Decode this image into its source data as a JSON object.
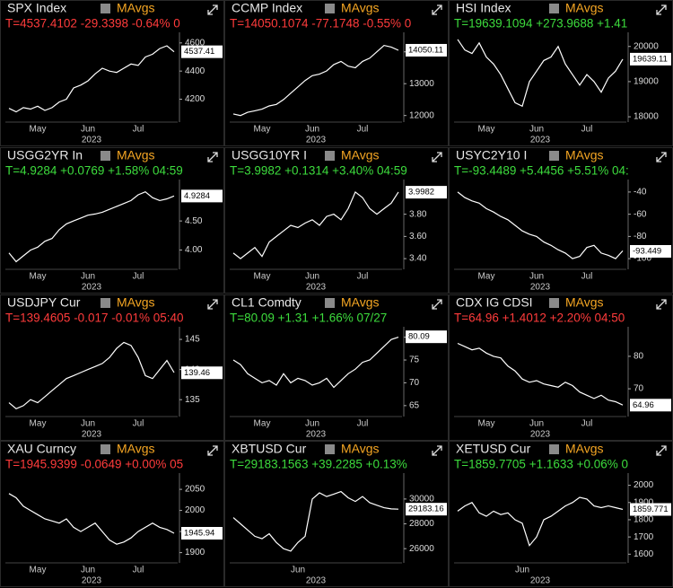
{
  "chart_data": [
    {
      "type": "line",
      "title": "SPX Index",
      "legend": "MAvgs",
      "legend_color": "#f5a623",
      "quote": "T=4537.4102 -29.3398 -0.64% 0",
      "quote_color": "#ff3b3b",
      "color": "#ffffff",
      "last_value": 4537.41,
      "categories": [
        null,
        null,
        null,
        null,
        "May",
        null,
        null,
        null,
        null,
        null,
        null,
        "Jun",
        null,
        null,
        null,
        null,
        null,
        null,
        "Jul",
        null,
        null,
        null,
        null,
        null
      ],
      "xlabel": "2023",
      "values": [
        4135,
        4110,
        4140,
        4130,
        4150,
        4120,
        4140,
        4180,
        4200,
        4280,
        4300,
        4330,
        4380,
        4420,
        4400,
        4390,
        4420,
        4450,
        4440,
        4500,
        4520,
        4560,
        4580,
        4537
      ],
      "ylim": [
        4050,
        4650
      ],
      "yticks": [
        4200,
        4400,
        4600
      ]
    },
    {
      "type": "line",
      "title": "CCMP Index",
      "legend": "MAvgs",
      "legend_color": "#f5a623",
      "quote": "T=14050.1074 -77.1748 -0.55% 0",
      "quote_color": "#ff3b3b",
      "color": "#ffffff",
      "last_value": 14050.11,
      "categories": [
        null,
        null,
        null,
        null,
        "May",
        null,
        null,
        null,
        null,
        null,
        null,
        "Jun",
        null,
        null,
        null,
        null,
        null,
        null,
        "Jul",
        null,
        null,
        null,
        null,
        null
      ],
      "xlabel": "2023",
      "values": [
        12050,
        12000,
        12100,
        12150,
        12200,
        12300,
        12350,
        12500,
        12700,
        12900,
        13100,
        13250,
        13300,
        13400,
        13600,
        13700,
        13550,
        13500,
        13700,
        13800,
        14000,
        14200,
        14150,
        14050
      ],
      "ylim": [
        11850,
        14500
      ],
      "yticks": [
        12000,
        13000,
        14000
      ]
    },
    {
      "type": "line",
      "title": "HSI Index",
      "legend": "MAvgs",
      "legend_color": "#f5a623",
      "quote": "T=19639.1094 +273.9688 +1.41",
      "quote_color": "#3ddc3d",
      "color": "#ffffff",
      "last_value": 19639.11,
      "categories": [
        null,
        null,
        null,
        null,
        "May",
        null,
        null,
        null,
        null,
        null,
        null,
        "Jun",
        null,
        null,
        null,
        null,
        null,
        null,
        "Jul",
        null,
        null,
        null,
        null,
        null
      ],
      "xlabel": "2023",
      "values": [
        20200,
        19900,
        19800,
        20100,
        19700,
        19500,
        19200,
        18800,
        18400,
        18300,
        19000,
        19300,
        19600,
        19700,
        20000,
        19500,
        19200,
        18900,
        19200,
        19000,
        18700,
        19100,
        19300,
        19639
      ],
      "ylim": [
        17900,
        20300
      ],
      "yticks": [
        18000,
        19000,
        20000
      ]
    },
    {
      "type": "line",
      "title": "USGG2YR In",
      "legend": "MAvgs",
      "legend_color": "#f5a623",
      "quote": "T=4.9284 +0.0769 +1.58% 04:59",
      "quote_color": "#3ddc3d",
      "color": "#ffffff",
      "last_value": 4.9284,
      "categories": [
        null,
        null,
        null,
        null,
        "May",
        null,
        null,
        null,
        null,
        null,
        null,
        "Jun",
        null,
        null,
        null,
        null,
        null,
        null,
        "Jul",
        null,
        null,
        null,
        null,
        null
      ],
      "xlabel": "2023",
      "values": [
        3.95,
        3.8,
        3.9,
        4.0,
        4.05,
        4.15,
        4.2,
        4.35,
        4.45,
        4.5,
        4.55,
        4.6,
        4.62,
        4.65,
        4.7,
        4.75,
        4.8,
        4.85,
        4.95,
        5.0,
        4.9,
        4.85,
        4.88,
        4.93
      ],
      "ylim": [
        3.7,
        5.15
      ],
      "yticks": [
        {
          "value": 4,
          "label": "4.00"
        },
        {
          "value": 4.5,
          "label": "4.50"
        }
      ]
    },
    {
      "type": "line",
      "title": "USGG10YR I",
      "legend": "MAvgs",
      "legend_color": "#f5a623",
      "quote": "T=3.9982 +0.1314 +3.40% 04:59",
      "quote_color": "#3ddc3d",
      "color": "#ffffff",
      "last_value": 3.9982,
      "categories": [
        null,
        null,
        null,
        null,
        "May",
        null,
        null,
        null,
        null,
        null,
        null,
        "Jun",
        null,
        null,
        null,
        null,
        null,
        null,
        "Jul",
        null,
        null,
        null,
        null,
        null
      ],
      "xlabel": "2023",
      "values": [
        3.45,
        3.4,
        3.45,
        3.5,
        3.42,
        3.55,
        3.6,
        3.65,
        3.7,
        3.68,
        3.72,
        3.75,
        3.7,
        3.78,
        3.8,
        3.75,
        3.85,
        4.0,
        3.95,
        3.85,
        3.8,
        3.85,
        3.9,
        4.0
      ],
      "ylim": [
        3.32,
        4.08
      ],
      "yticks": [
        {
          "value": 3.4,
          "label": "3.40"
        },
        {
          "value": 3.6,
          "label": "3.60"
        },
        {
          "value": 3.8,
          "label": "3.80"
        }
      ]
    },
    {
      "type": "line",
      "title": "USYC2Y10 I",
      "legend": "MAvgs",
      "legend_color": "#f5a623",
      "quote": "T=-93.4489 +5.4456 +5.51% 04:",
      "quote_color": "#3ddc3d",
      "color": "#ffffff",
      "last_value": -93.449,
      "categories": [
        null,
        null,
        null,
        null,
        "May",
        null,
        null,
        null,
        null,
        null,
        null,
        "Jun",
        null,
        null,
        null,
        null,
        null,
        null,
        "Jul",
        null,
        null,
        null,
        null,
        null
      ],
      "xlabel": "2023",
      "values": [
        -40,
        -45,
        -48,
        -50,
        -55,
        -58,
        -62,
        -65,
        -70,
        -75,
        -78,
        -80,
        -85,
        -88,
        -92,
        -95,
        -100,
        -98,
        -90,
        -88,
        -95,
        -97,
        -100,
        -93
      ],
      "ylim": [
        -108,
        -32
      ],
      "yticks": [
        -40,
        -60,
        -80,
        -100
      ]
    },
    {
      "type": "line",
      "title": "USDJPY Cur",
      "legend": "MAvgs",
      "legend_color": "#f5a623",
      "quote": "T=139.4605 -0.017 -0.01% 05:40",
      "quote_color": "#ff3b3b",
      "color": "#ffffff",
      "last_value": 139.46,
      "categories": [
        null,
        null,
        null,
        null,
        "May",
        null,
        null,
        null,
        null,
        null,
        null,
        "Jun",
        null,
        null,
        null,
        null,
        null,
        null,
        "Jul",
        null,
        null,
        null,
        null,
        null
      ],
      "xlabel": "2023",
      "values": [
        134.5,
        133.5,
        134,
        135,
        134.5,
        135.5,
        136.5,
        137.5,
        138.5,
        139,
        139.5,
        140,
        140.5,
        141,
        142,
        143.5,
        144.5,
        144,
        142,
        139,
        138.5,
        140,
        141.5,
        139.5
      ],
      "ylim": [
        132.5,
        146.5
      ],
      "yticks": [
        135,
        140,
        145
      ]
    },
    {
      "type": "line",
      "title": "CL1 Comdty",
      "legend": "MAvgs",
      "legend_color": "#f5a623",
      "quote": "T=80.09 +1.31 +1.66% 07/27",
      "quote_color": "#3ddc3d",
      "color": "#ffffff",
      "last_value": 80.09,
      "categories": [
        null,
        null,
        null,
        null,
        "May",
        null,
        null,
        null,
        null,
        null,
        null,
        "Jun",
        null,
        null,
        null,
        null,
        null,
        null,
        "Jul",
        null,
        null,
        null,
        null,
        null
      ],
      "xlabel": "2023",
      "values": [
        75,
        74,
        72,
        71,
        70,
        70.5,
        69.5,
        72,
        70,
        71,
        70.5,
        69.5,
        70,
        71,
        69,
        70.5,
        72,
        73,
        74.5,
        75,
        76.5,
        78,
        79.5,
        80
      ],
      "ylim": [
        63,
        81.5
      ],
      "yticks": [
        65,
        70,
        75,
        80
      ]
    },
    {
      "type": "line",
      "title": "CDX IG CDSI",
      "legend": "MAvgs",
      "legend_color": "#f5a623",
      "quote": "T=64.96 +1.4012 +2.20% 04:50",
      "quote_color": "#ff3b3b",
      "color": "#ffffff",
      "last_value": 64.96,
      "categories": [
        null,
        null,
        null,
        null,
        "May",
        null,
        null,
        null,
        null,
        null,
        null,
        "Jun",
        null,
        null,
        null,
        null,
        null,
        null,
        "Jul",
        null,
        null,
        null,
        null,
        null
      ],
      "xlabel": "2023",
      "values": [
        84,
        83,
        82,
        82.5,
        81,
        80,
        79.5,
        77,
        75.5,
        73,
        72,
        72.5,
        71.5,
        71,
        70.5,
        72,
        71,
        69,
        68,
        67,
        68,
        66.5,
        66,
        65
      ],
      "ylim": [
        62,
        88
      ],
      "yticks": [
        70,
        80
      ]
    },
    {
      "type": "line",
      "title": "XAU Curncy",
      "legend": "MAvgs",
      "legend_color": "#f5a623",
      "quote": "T=1945.9399 -0.0649 +0.00% 05",
      "quote_color": "#ff3b3b",
      "color": "#ffffff",
      "last_value": 1945.94,
      "categories": [
        null,
        null,
        null,
        null,
        "May",
        null,
        null,
        null,
        null,
        null,
        null,
        "Jun",
        null,
        null,
        null,
        null,
        null,
        null,
        "Jul",
        null,
        null,
        null,
        null,
        null
      ],
      "xlabel": "2023",
      "values": [
        2040,
        2030,
        2010,
        2000,
        1990,
        1980,
        1975,
        1970,
        1980,
        1960,
        1950,
        1960,
        1970,
        1950,
        1930,
        1920,
        1925,
        1935,
        1950,
        1960,
        1970,
        1960,
        1955,
        1946
      ],
      "ylim": [
        1880,
        2080
      ],
      "yticks": [
        1900,
        1950,
        2000,
        2050
      ]
    },
    {
      "type": "line",
      "title": "XBTUSD Cur",
      "legend": "MAvgs",
      "legend_color": "#f5a623",
      "quote": "T=29183.1563 +39.2285 +0.13%",
      "quote_color": "#3ddc3d",
      "color": "#ffffff",
      "last_value": 29183.16,
      "categories": [
        null,
        null,
        null,
        null,
        null,
        null,
        null,
        null,
        null,
        "Jun",
        null,
        null,
        null,
        null,
        null,
        null,
        null,
        null,
        null,
        null,
        null,
        null,
        null,
        null
      ],
      "xlabel": "2023",
      "values": [
        28500,
        28000,
        27500,
        27000,
        26800,
        27200,
        26500,
        26000,
        25800,
        26500,
        27000,
        30000,
        30500,
        30200,
        30400,
        30600,
        30100,
        29800,
        30200,
        29700,
        29500,
        29300,
        29200,
        29180
      ],
      "ylim": [
        25000,
        31800
      ],
      "yticks": [
        26000,
        28000,
        30000
      ]
    },
    {
      "type": "line",
      "title": "XETUSD Cur",
      "legend": "MAvgs",
      "legend_color": "#f5a623",
      "quote": "T=1859.7705 +1.1633 +0.06% 0",
      "quote_color": "#3ddc3d",
      "color": "#ffffff",
      "last_value": 1859.771,
      "categories": [
        null,
        null,
        null,
        null,
        null,
        null,
        null,
        null,
        null,
        "Jun",
        null,
        null,
        null,
        null,
        null,
        null,
        null,
        null,
        null,
        null,
        null,
        null,
        null,
        null
      ],
      "xlabel": "2023",
      "values": [
        1850,
        1880,
        1900,
        1840,
        1820,
        1850,
        1830,
        1840,
        1800,
        1780,
        1650,
        1700,
        1800,
        1820,
        1850,
        1880,
        1900,
        1930,
        1920,
        1880,
        1870,
        1880,
        1870,
        1860
      ],
      "ylim": [
        1560,
        2050
      ],
      "yticks": [
        1600,
        1700,
        1800,
        1900,
        2000
      ]
    }
  ]
}
